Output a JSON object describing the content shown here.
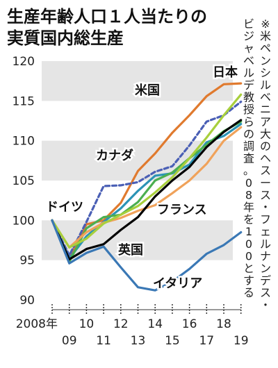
{
  "chart_data": {
    "type": "line",
    "title": "生産年齢人口１人当たりの実質国内総生産",
    "title_lines": [
      "生産年齢人口１人当たりの",
      "実質国内総生産"
    ],
    "note": "※米ペンシルベニア大のヘスース・フェルナンデスービジャベルデ教授らの調査。08年を100とする",
    "note_lines": [
      "※米ペンシルベニア大のヘスース・フェルナンデス・",
      "ビジャベルデ教授らの調査。08年を100とする"
    ],
    "x": [
      2008,
      2009,
      2010,
      2011,
      2012,
      2013,
      2014,
      2015,
      2016,
      2017,
      2018,
      2019
    ],
    "x_tick_labels": [
      "2008年",
      "09",
      "10",
      "11",
      "12",
      "13",
      "14",
      "15",
      "16",
      "17",
      "18",
      "19"
    ],
    "ylim": [
      90,
      120
    ],
    "y_ticks": [
      90,
      95,
      100,
      105,
      110,
      115,
      120
    ],
    "bands": [
      [
        115,
        120
      ],
      [
        105,
        110
      ],
      [
        95,
        100
      ]
    ],
    "series": [
      {
        "name": "日本",
        "color": "#e07a2e",
        "dash": "",
        "values": [
          100,
          95.3,
          99.5,
          100.0,
          102.2,
          106.2,
          108.4,
          111.0,
          113.2,
          115.6,
          117.1,
          117.2
        ]
      },
      {
        "name": "米国",
        "color": "#4a5fb5",
        "dash": "6,4",
        "values": [
          100,
          95.6,
          99.8,
          104.3,
          104.4,
          104.8,
          106.1,
          106.8,
          109.4,
          112.4,
          113.2,
          114.9
        ]
      },
      {
        "name": "カナダ",
        "color": "#2b93b5",
        "dash": "",
        "values": [
          100,
          95.2,
          98.0,
          99.8,
          101.5,
          103.7,
          105.6,
          105.9,
          107.0,
          109.8,
          110.6,
          112.1
        ]
      },
      {
        "name": "ドイツ",
        "color": "#4caf50",
        "dash": "",
        "values": [
          100,
          94.8,
          99.0,
          100.4,
          100.7,
          102.3,
          105.0,
          106.0,
          107.8,
          109.5,
          111.2,
          112.4
        ]
      },
      {
        "name": "フランス",
        "color": "#f0a25a",
        "dash": "",
        "values": [
          100,
          96.6,
          98.5,
          99.7,
          100.3,
          101.2,
          101.9,
          103.4,
          105.0,
          107.1,
          110.0,
          111.7
        ]
      },
      {
        "name": "英国",
        "color": "#000000",
        "dash": "",
        "values": [
          100,
          95.1,
          96.4,
          97.0,
          98.8,
          100.4,
          103.0,
          105.0,
          106.7,
          109.2,
          111.1,
          112.6
        ]
      },
      {
        "name": "",
        "color": "#a8cf3c",
        "dash": "",
        "values": [
          100,
          96.6,
          97.7,
          99.6,
          100.7,
          101.8,
          103.5,
          105.4,
          107.8,
          110.4,
          113.2,
          115.8
        ]
      },
      {
        "name": "イタリア",
        "color": "#3a78b5",
        "dash": "",
        "values": [
          100,
          94.6,
          95.9,
          96.7,
          94.1,
          91.6,
          91.2,
          92.3,
          93.9,
          95.8,
          96.9,
          98.5
        ]
      }
    ]
  }
}
